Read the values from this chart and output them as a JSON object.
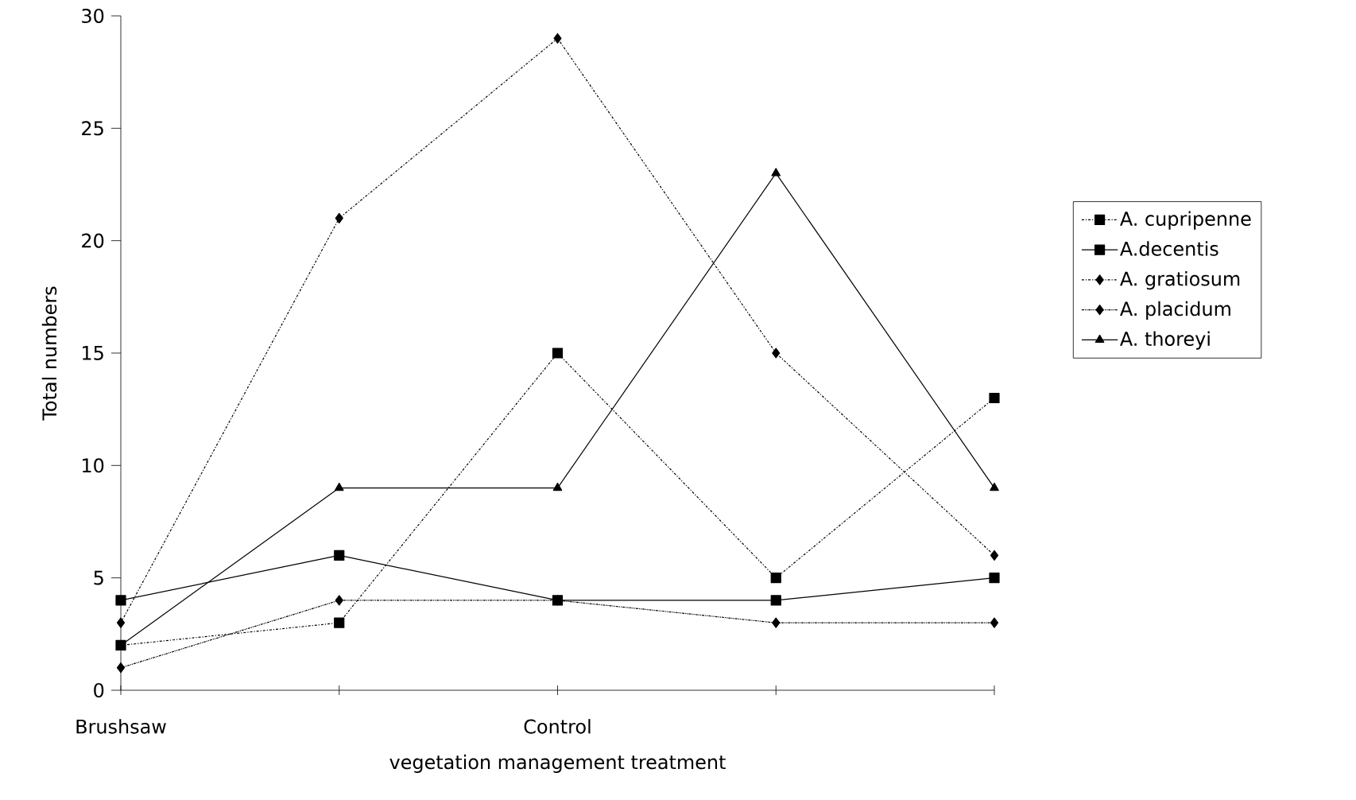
{
  "chart_data": {
    "type": "line",
    "xlabel": "vegetation management treatment",
    "ylabel": "Total numbers",
    "categories": [
      "Brushsaw",
      null,
      "Control",
      null,
      null
    ],
    "ylim": [
      0,
      30
    ],
    "yticks": [
      0,
      5,
      10,
      15,
      20,
      25,
      30
    ],
    "grid": false,
    "legend": "right",
    "series": [
      {
        "name": "A. cupripenne",
        "color": "#000000",
        "marker": "square",
        "line_style": "dashed",
        "values": [
          2,
          3,
          15,
          5,
          13
        ]
      },
      {
        "name": "A.decentis",
        "color": "#000000",
        "marker": "square",
        "line_style": "solid",
        "values": [
          4,
          6,
          4,
          4,
          5
        ]
      },
      {
        "name": "A. gratiosum",
        "color": "#000000",
        "marker": "diamond",
        "line_style": "dashed",
        "values": [
          3,
          21,
          29,
          15,
          6
        ]
      },
      {
        "name": "A. placidum",
        "color": "#000000",
        "marker": "diamond",
        "line_style": "dotted",
        "values": [
          1,
          4,
          4,
          3,
          3
        ]
      },
      {
        "name": "A. thoreyi",
        "color": "#000000",
        "marker": "triangle",
        "line_style": "solid",
        "values": [
          2,
          9,
          9,
          23,
          9
        ]
      }
    ]
  }
}
